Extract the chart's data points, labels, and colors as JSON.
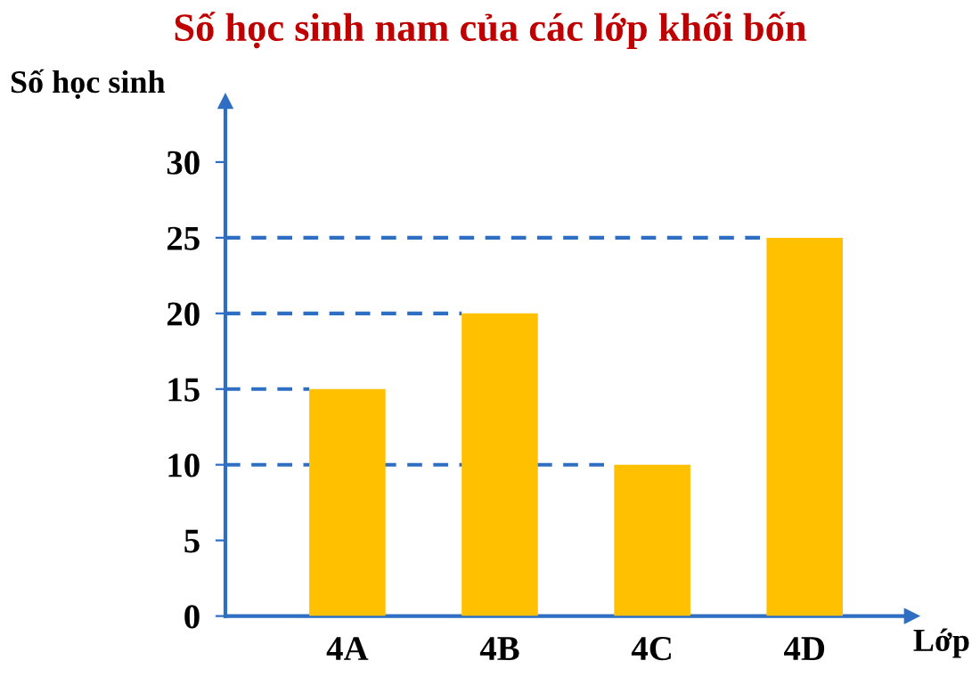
{
  "chart_data": {
    "type": "bar",
    "title": "Số học sinh nam của các lớp khối bốn",
    "xlabel": "Lớp",
    "ylabel": "Số học sinh",
    "categories": [
      "4A",
      "4B",
      "4C",
      "4D"
    ],
    "values": [
      15,
      20,
      10,
      25
    ],
    "color": "#ffc000",
    "ylim": [
      0,
      34
    ],
    "yticks": [
      0,
      5,
      10,
      15,
      20,
      25,
      30
    ],
    "grid": false,
    "ref_lines": [
      {
        "axis": "y",
        "value": 15,
        "color": "#2e6fc4",
        "line_style": "dashed"
      },
      {
        "axis": "y",
        "value": 20,
        "color": "#2e6fc4",
        "line_style": "dashed"
      },
      {
        "axis": "y",
        "value": 10,
        "color": "#2e6fc4",
        "line_style": "dashed"
      },
      {
        "axis": "y",
        "value": 25,
        "color": "#2e6fc4",
        "line_style": "dashed"
      }
    ]
  }
}
